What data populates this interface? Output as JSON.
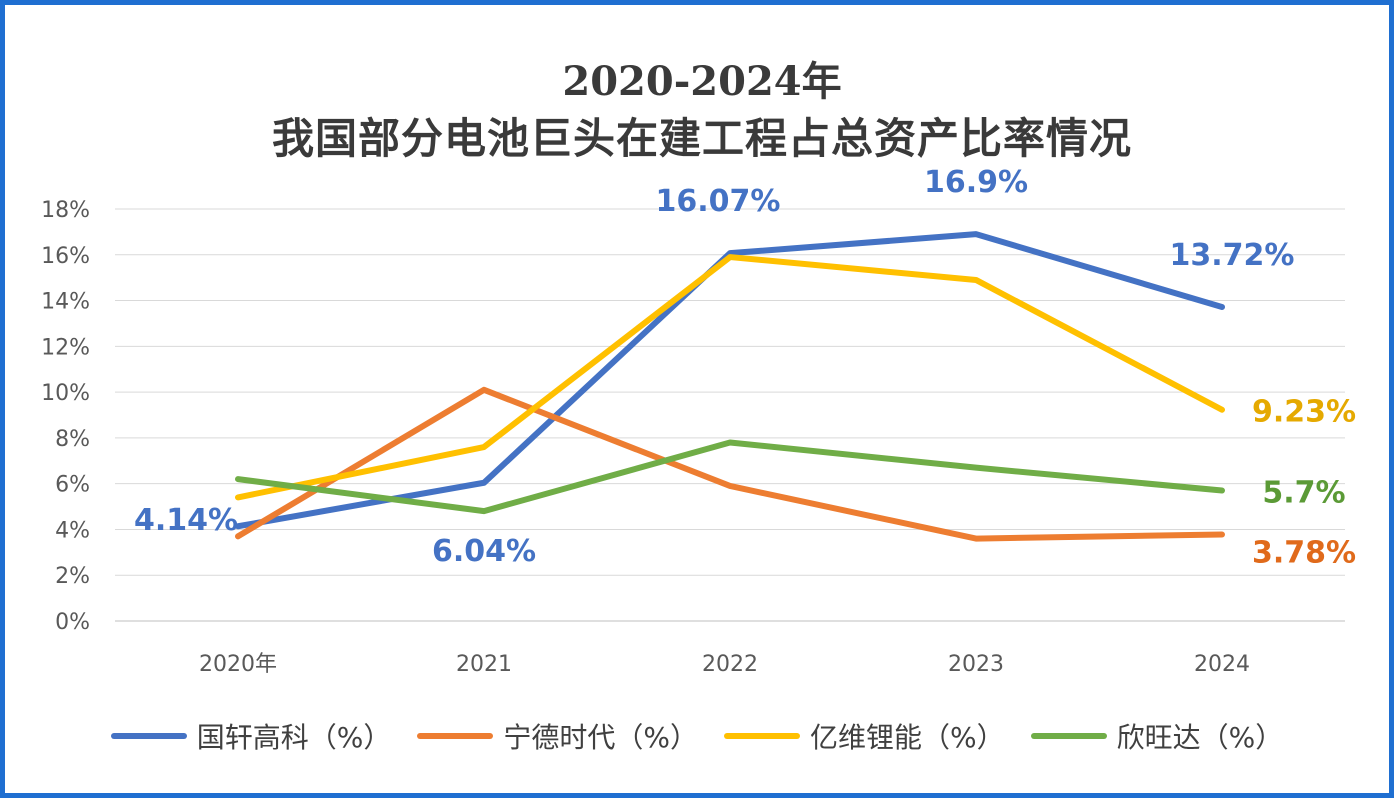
{
  "title": {
    "line1": "2020-2024年",
    "line2": "我国部分电池巨头在建工程占总资产比率情况"
  },
  "chart_data": {
    "type": "line",
    "categories": [
      "2020年",
      "2021",
      "2022",
      "2023",
      "2024"
    ],
    "ylim": [
      0,
      18
    ],
    "yticks": [
      "0%",
      "2%",
      "4%",
      "6%",
      "8%",
      "10%",
      "12%",
      "14%",
      "16%",
      "18%"
    ],
    "grid": true,
    "legend_position": "bottom",
    "series": [
      {
        "name": "国轩高科（%）",
        "color": "#4472C4",
        "values": [
          4.14,
          6.04,
          16.07,
          16.9,
          13.72
        ]
      },
      {
        "name": "宁德时代（%）",
        "color": "#ED7D31",
        "values": [
          3.7,
          10.1,
          5.9,
          3.6,
          3.78
        ]
      },
      {
        "name": "亿维锂能（%）",
        "color": "#FFC000",
        "values": [
          5.4,
          7.6,
          15.9,
          14.9,
          9.23
        ]
      },
      {
        "name": "欣旺达（%）",
        "color": "#70AD47",
        "values": [
          6.2,
          4.8,
          7.8,
          6.7,
          5.7
        ]
      }
    ],
    "annotations": [
      {
        "text": "4.14%",
        "series": 0,
        "index": 0,
        "color": "#4472C4"
      },
      {
        "text": "6.04%",
        "series": 0,
        "index": 1,
        "color": "#4472C4"
      },
      {
        "text": "16.07%",
        "series": 0,
        "index": 2,
        "color": "#4472C4"
      },
      {
        "text": "16.9%",
        "series": 0,
        "index": 3,
        "color": "#4472C4"
      },
      {
        "text": "13.72%",
        "series": 0,
        "index": 4,
        "color": "#4472C4"
      },
      {
        "text": "9.23%",
        "series": 2,
        "index": 4,
        "color": "#E5A900"
      },
      {
        "text": "5.7%",
        "series": 3,
        "index": 4,
        "color": "#5B9A36"
      },
      {
        "text": "3.78%",
        "series": 1,
        "index": 4,
        "color": "#E06A1B"
      }
    ]
  }
}
